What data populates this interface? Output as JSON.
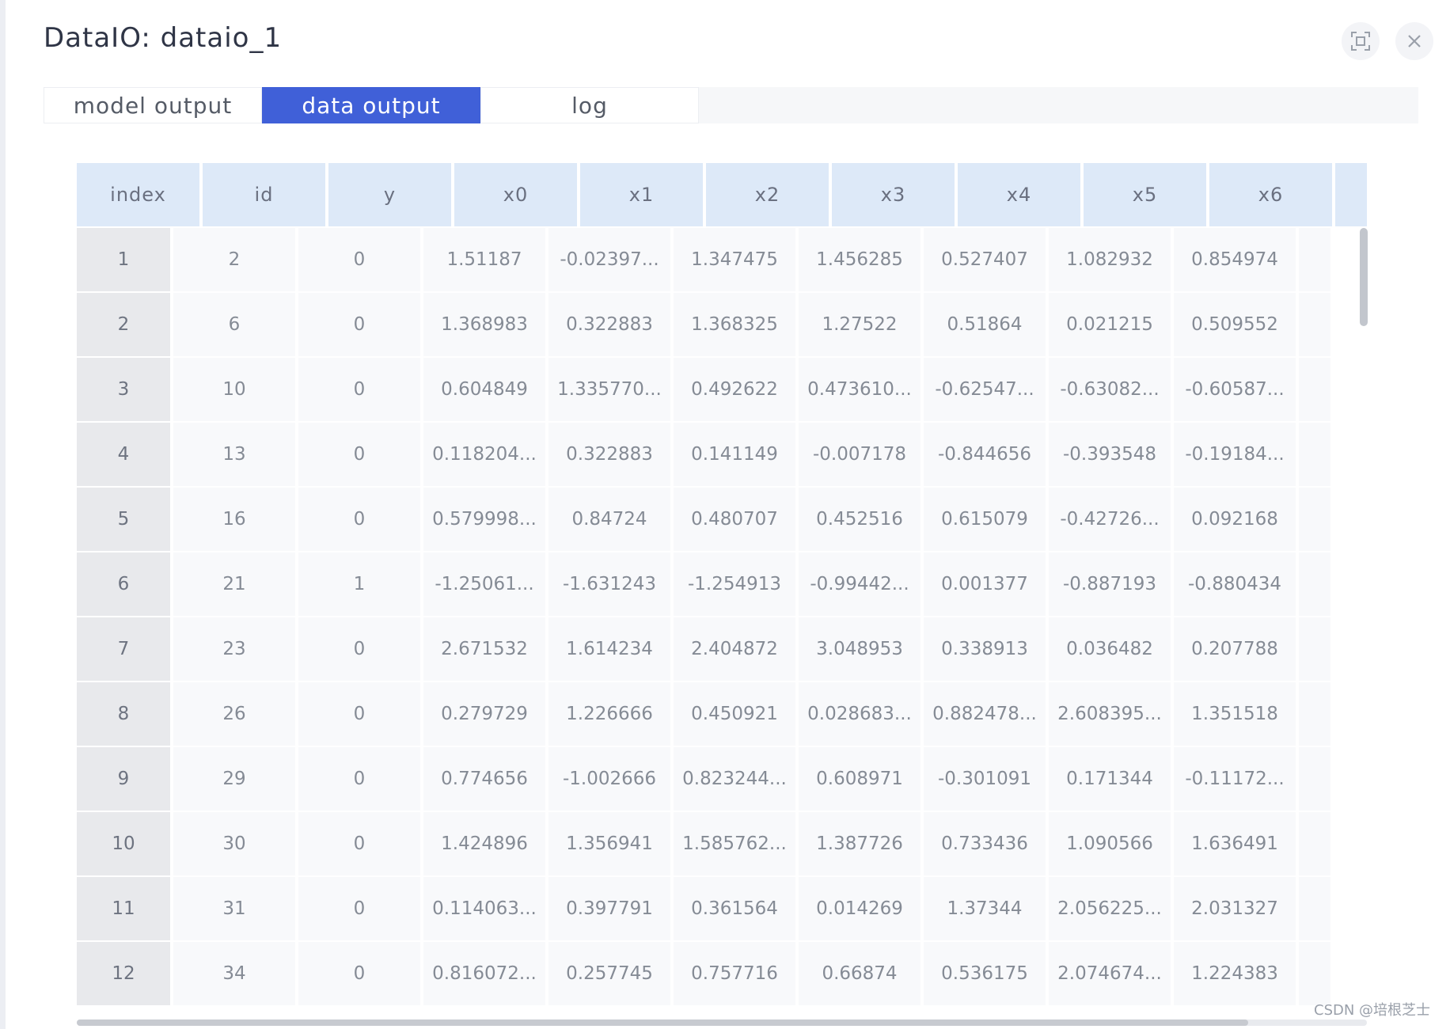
{
  "dialog": {
    "title": "DataIO: dataio_1",
    "fullscreen_icon": "fullscreen-icon",
    "close_icon": "close-icon"
  },
  "tabs": [
    {
      "label": "model output",
      "active": false
    },
    {
      "label": "data output",
      "active": true
    },
    {
      "label": "log",
      "active": false
    }
  ],
  "table": {
    "columns": [
      "index",
      "id",
      "y",
      "x0",
      "x1",
      "x2",
      "x3",
      "x4",
      "x5",
      "x6"
    ],
    "rows": [
      [
        "1",
        "2",
        "0",
        "1.51187",
        "-0.02397...",
        "1.347475",
        "1.456285",
        "0.527407",
        "1.082932",
        "0.854974"
      ],
      [
        "2",
        "6",
        "0",
        "1.368983",
        "0.322883",
        "1.368325",
        "1.27522",
        "0.51864",
        "0.021215",
        "0.509552"
      ],
      [
        "3",
        "10",
        "0",
        "0.604849",
        "1.335770...",
        "0.492622",
        "0.473610...",
        "-0.62547...",
        "-0.63082...",
        "-0.60587..."
      ],
      [
        "4",
        "13",
        "0",
        "0.118204...",
        "0.322883",
        "0.141149",
        "-0.007178",
        "-0.844656",
        "-0.393548",
        "-0.19184..."
      ],
      [
        "5",
        "16",
        "0",
        "0.579998...",
        "0.84724",
        "0.480707",
        "0.452516",
        "0.615079",
        "-0.42726...",
        "0.092168"
      ],
      [
        "6",
        "21",
        "1",
        "-1.25061...",
        "-1.631243",
        "-1.254913",
        "-0.99442...",
        "0.001377",
        "-0.887193",
        "-0.880434"
      ],
      [
        "7",
        "23",
        "0",
        "2.671532",
        "1.614234",
        "2.404872",
        "3.048953",
        "0.338913",
        "0.036482",
        "0.207788"
      ],
      [
        "8",
        "26",
        "0",
        "0.279729",
        "1.226666",
        "0.450921",
        "0.028683...",
        "0.882478...",
        "2.608395...",
        "1.351518"
      ],
      [
        "9",
        "29",
        "0",
        "0.774656",
        "-1.002666",
        "0.823244...",
        "0.608971",
        "-0.301091",
        "0.171344",
        "-0.11172..."
      ],
      [
        "10",
        "30",
        "0",
        "1.424896",
        "1.356941",
        "1.585762...",
        "1.387726",
        "0.733436",
        "1.090566",
        "1.636491"
      ],
      [
        "11",
        "31",
        "0",
        "0.114063...",
        "0.397791",
        "0.361564",
        "0.014269",
        "1.37344",
        "2.056225...",
        "2.031327"
      ],
      [
        "12",
        "34",
        "0",
        "0.816072...",
        "0.257745",
        "0.757716",
        "0.66874",
        "0.536175",
        "2.074674...",
        "1.224383"
      ]
    ]
  },
  "watermark": "CSDN @培根芝士"
}
